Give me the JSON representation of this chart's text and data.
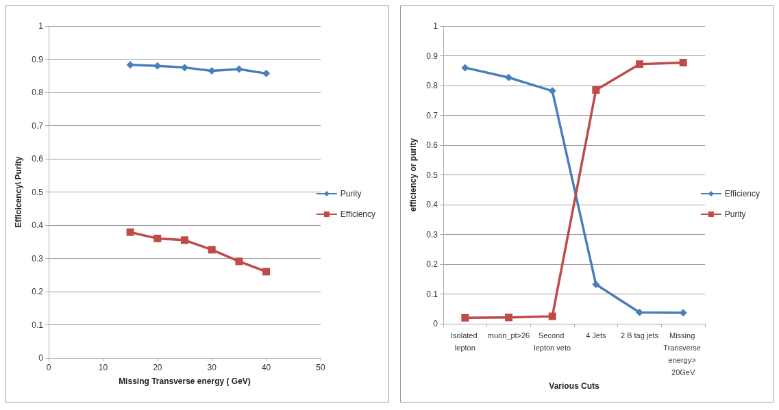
{
  "chart_data": [
    {
      "type": "line",
      "xlabel": "Missing Transverse energy ( GeV)",
      "ylabel": "Efficicency\\ Purity",
      "x": [
        15,
        20,
        25,
        30,
        35,
        40
      ],
      "xlim": [
        0,
        50
      ],
      "xticks": [
        0,
        10,
        20,
        30,
        40,
        50
      ],
      "ylim": [
        0,
        1
      ],
      "yticks": [
        0,
        0.1,
        0.2,
        0.3,
        0.4,
        0.5,
        0.6,
        0.7,
        0.8,
        0.9,
        1
      ],
      "grid": "y",
      "legend": "right",
      "series": [
        {
          "name": "Purity",
          "color": "#4a7ebb",
          "marker": "diamond",
          "values": [
            0.883,
            0.88,
            0.875,
            0.865,
            0.87,
            0.857
          ]
        },
        {
          "name": "Efficiency",
          "color": "#be4b48",
          "marker": "square",
          "values": [
            0.379,
            0.36,
            0.355,
            0.326,
            0.291,
            0.26
          ]
        }
      ]
    },
    {
      "type": "line",
      "xlabel": "Various Cuts",
      "ylabel": "efficiency or purity",
      "categories": [
        "Isolated lepton",
        "muon_pt>26",
        "Second lepton veto",
        "4 Jets",
        "2 B tag jets",
        "Missing Transverse energy> 20GeV"
      ],
      "ylim": [
        0,
        1
      ],
      "yticks": [
        0,
        0.1,
        0.2,
        0.3,
        0.4,
        0.5,
        0.6,
        0.7,
        0.8,
        0.9,
        1
      ],
      "grid": "y",
      "legend": "right",
      "series": [
        {
          "name": "Efficiency",
          "color": "#4a7ebb",
          "marker": "diamond",
          "values": [
            0.86,
            0.827,
            0.782,
            0.132,
            0.038,
            0.037
          ]
        },
        {
          "name": "Purity",
          "color": "#be4b48",
          "marker": "square",
          "values": [
            0.02,
            0.021,
            0.025,
            0.785,
            0.872,
            0.877
          ]
        }
      ]
    }
  ]
}
